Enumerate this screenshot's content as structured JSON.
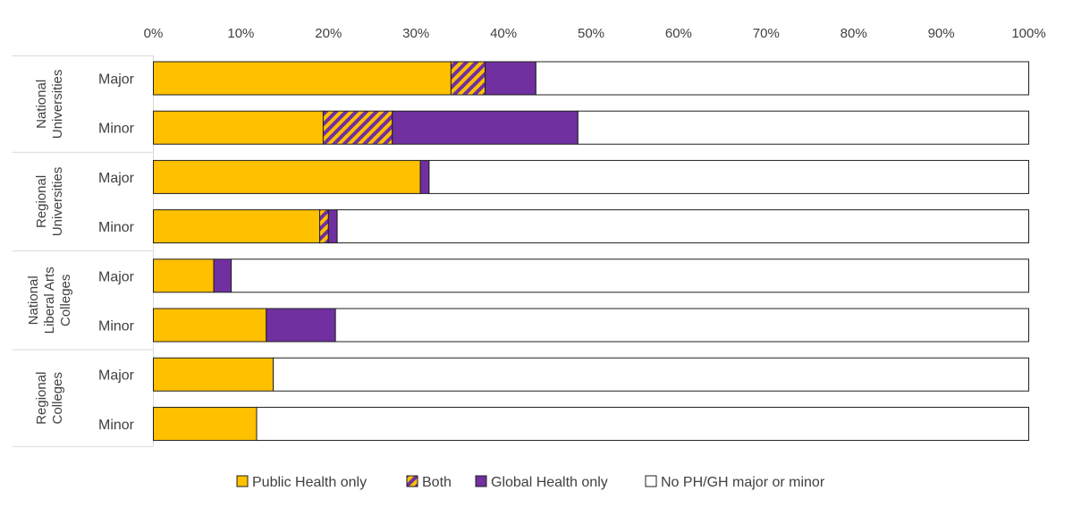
{
  "chart_data": {
    "type": "bar",
    "orientation": "horizontal",
    "stacked": true,
    "title": "",
    "xlabel": "",
    "ylabel": "",
    "xlim": [
      0,
      100
    ],
    "x_ticks": [
      "0%",
      "10%",
      "20%",
      "30%",
      "40%",
      "50%",
      "60%",
      "70%",
      "80%",
      "90%",
      "100%"
    ],
    "grid": false,
    "legend_position": "bottom",
    "groups": [
      {
        "name": "National Universities",
        "label_lines": [
          "National",
          "Universities"
        ]
      },
      {
        "name": "Regional Universities",
        "label_lines": [
          "Regional",
          "Universities"
        ]
      },
      {
        "name": "National Liberal Arts Colleges",
        "label_lines": [
          "National",
          "Liberal Arts",
          "Colleges"
        ]
      },
      {
        "name": "Regional Colleges",
        "label_lines": [
          "Regional",
          "Colleges"
        ]
      }
    ],
    "categories": [
      "Major",
      "Minor",
      "Major",
      "Minor",
      "Major",
      "Minor",
      "Major",
      "Minor"
    ],
    "category_group_index": [
      0,
      0,
      1,
      1,
      2,
      2,
      3,
      3
    ],
    "series": [
      {
        "name": "Public Health only",
        "color": "#FFC000",
        "pattern": "solid",
        "values": [
          34.0,
          19.4,
          30.5,
          19.0,
          6.9,
          12.9,
          13.7,
          11.8
        ]
      },
      {
        "name": "Both",
        "color": "#FFC000",
        "pattern": "striped",
        "stripe_color": "#7030A0",
        "values": [
          3.9,
          7.9,
          0.0,
          1.0,
          0.0,
          0.0,
          0.0,
          0.0
        ]
      },
      {
        "name": "Global Health only",
        "color": "#7030A0",
        "pattern": "solid",
        "values": [
          5.8,
          21.2,
          1.0,
          1.0,
          2.0,
          7.9,
          0.0,
          0.0
        ]
      },
      {
        "name": "No PH/GH major or minor",
        "color": "#FFFFFF",
        "pattern": "solid",
        "values": [
          56.3,
          51.5,
          68.5,
          79.0,
          91.1,
          79.2,
          86.3,
          88.2
        ]
      }
    ]
  }
}
